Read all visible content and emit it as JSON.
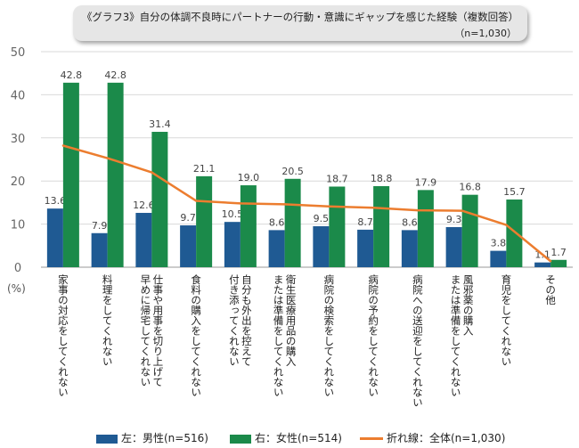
{
  "title": {
    "text": "《グラフ3》自分の体調不良時にパートナーの行動・意識にギャップを感じた経験（複数回答）",
    "n": "（n=1,030）"
  },
  "colors": {
    "male": "#1f5a93",
    "female": "#1b8a4a",
    "line": "#ec7d2f",
    "grid": "#d9d9d9",
    "axis": "#999999"
  },
  "chart_data": {
    "type": "bar",
    "ylim": [
      0,
      50
    ],
    "yticks": [
      "0",
      "10",
      "20",
      "30",
      "40",
      "50"
    ],
    "ylabel": "(%)",
    "categories": [
      "家事の対応をしてくれない",
      "料理をしてくれない",
      "仕事や用事を切り上げて早めに帰宅してくれない",
      "食料の購入をしてくれない",
      "自分も外出を控えて付き添ってくれない",
      "衛生医療用品の購入または準備をしてくれない",
      "病院の検索をしてくれない",
      "病院の予約をしてくれない",
      "病院への送迎をしてくれない",
      "風邪薬の購入または準備をしてくれない",
      "育児をしてくれない",
      "その他"
    ],
    "category_lines": [
      [
        "家事の対応をしてくれない"
      ],
      [
        "料理をしてくれない"
      ],
      [
        "仕事や用事を切り上げて",
        "早めに帰宅してくれない"
      ],
      [
        "食料の購入をしてくれない"
      ],
      [
        "自分も外出を控えて",
        "付き添ってくれない"
      ],
      [
        "衛生医療用品の購入",
        "または準備をしてくれない"
      ],
      [
        "病院の検索をしてくれない"
      ],
      [
        "病院の予約をしてくれない"
      ],
      [
        "病院への送迎をしてくれない"
      ],
      [
        "風邪薬の購入",
        "または準備をしてくれない"
      ],
      [
        "育児をしてくれない"
      ],
      [
        "その他"
      ]
    ],
    "series": [
      {
        "name": "左：男性(n=516)",
        "kind": "bar",
        "values": [
          13.6,
          7.9,
          12.6,
          9.7,
          10.5,
          8.6,
          9.5,
          8.7,
          8.6,
          9.3,
          3.8,
          1.1
        ]
      },
      {
        "name": "右：女性(n=514)",
        "kind": "bar",
        "values": [
          42.8,
          42.8,
          31.4,
          21.1,
          19.0,
          20.5,
          18.7,
          18.8,
          17.9,
          16.8,
          15.7,
          1.7
        ]
      },
      {
        "name": "折れ線：全体(n=1,030)",
        "kind": "line",
        "values": [
          28.2,
          25.3,
          22.0,
          15.4,
          14.8,
          14.6,
          14.1,
          13.8,
          13.2,
          13.1,
          9.8,
          1.4
        ]
      }
    ],
    "legend": "bottom",
    "grid": true
  }
}
